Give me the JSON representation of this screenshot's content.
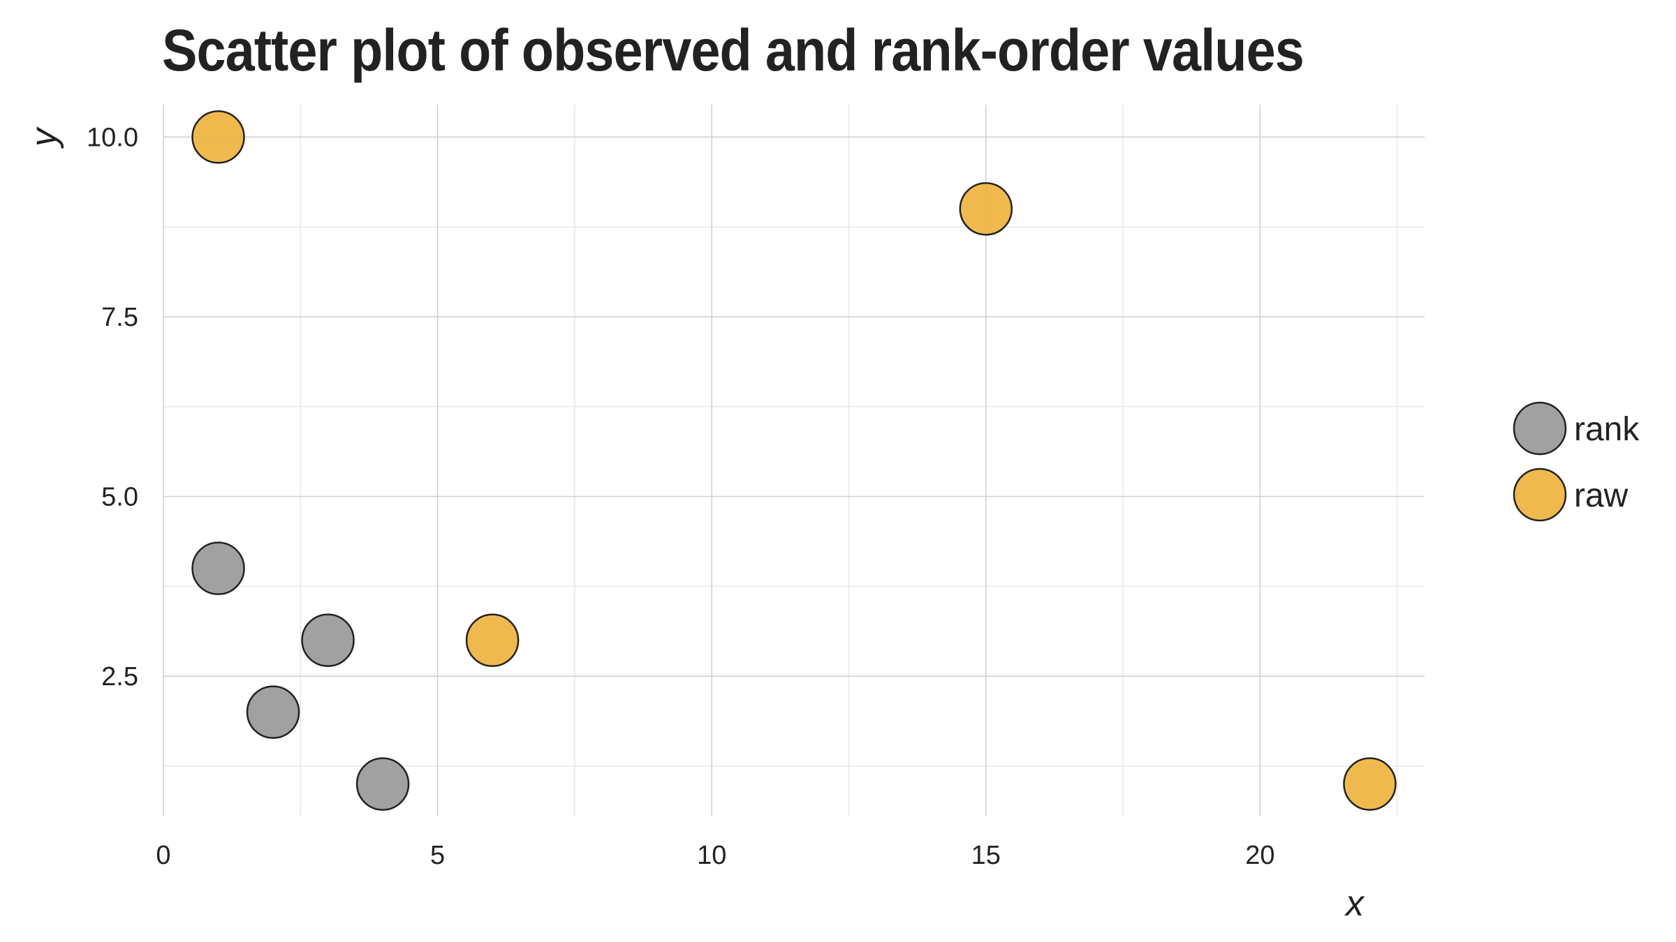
{
  "chart_data": {
    "type": "scatter",
    "title": "Scatter plot of observed and rank-order values",
    "xlabel": "x",
    "ylabel": "y",
    "xlim": [
      0,
      23
    ],
    "ylim": [
      0.55,
      10.45
    ],
    "x_ticks": [
      0,
      5,
      10,
      15,
      20
    ],
    "x_tick_labels": [
      "0",
      "5",
      "10",
      "15",
      "20"
    ],
    "y_ticks": [
      2.5,
      5.0,
      7.5,
      10.0
    ],
    "y_tick_labels": [
      "2.5",
      "5.0",
      "7.5",
      "10.0"
    ],
    "grid": true,
    "legend_position": "right",
    "series": [
      {
        "name": "rank",
        "color": "#999999",
        "points": [
          {
            "x": 1,
            "y": 4
          },
          {
            "x": 2,
            "y": 2
          },
          {
            "x": 3,
            "y": 3
          },
          {
            "x": 4,
            "y": 1
          }
        ]
      },
      {
        "name": "raw",
        "color": "#EFB33F",
        "points": [
          {
            "x": 1,
            "y": 10
          },
          {
            "x": 6,
            "y": 3
          },
          {
            "x": 15,
            "y": 9
          },
          {
            "x": 22,
            "y": 1
          }
        ]
      }
    ]
  }
}
